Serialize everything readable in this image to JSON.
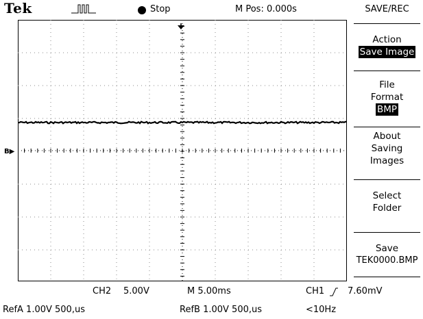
{
  "header": {
    "brand": "Tek",
    "status": "Stop",
    "mpos": "M Pos: 0.000s",
    "menu_title": "SAVE/REC"
  },
  "menu": {
    "action_label": "Action",
    "action_value": "Save Image",
    "file_format_line1": "File",
    "file_format_line2": "Format",
    "file_format_value": "BMP",
    "about_line1": "About",
    "about_line2": "Saving",
    "about_line3": "Images",
    "select_line1": "Select",
    "select_line2": "Folder",
    "save_line1": "Save",
    "save_line2": "TEK0000.BMP"
  },
  "footer": {
    "ch2": "CH2",
    "ch2_scale": "5.00V",
    "timebase": "M 5.00ms",
    "ch1_trig": "CH1",
    "trig_level": "7.60mV",
    "refa": "RefA 1.00V 500,us",
    "refb": "RefB 1.00V 500,us",
    "freq": "<10Hz"
  },
  "marker": {
    "ref": "B"
  },
  "colors": {
    "background": "#ffffff",
    "foreground": "#000000"
  }
}
